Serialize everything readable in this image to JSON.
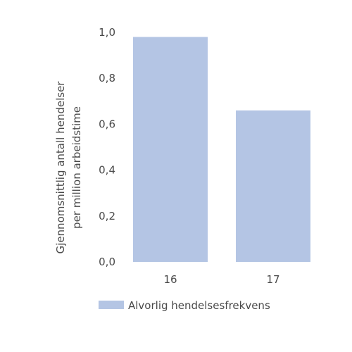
{
  "chart_data": {
    "type": "bar",
    "categories": [
      "16",
      "17"
    ],
    "series": [
      {
        "name": "Alvorlig hendelsesfrekvens",
        "values": [
          0.98,
          0.66
        ],
        "color": "#b4c5e4"
      }
    ],
    "yticks": [
      "0,0",
      "0,2",
      "0,4",
      "0,6",
      "0,8",
      "1,0"
    ],
    "ylim": [
      0,
      1.0
    ],
    "ylabel_lines": [
      "Gjennomsnittlig antall hendelser",
      "per million arbeidstime"
    ],
    "xlabel": "",
    "title": "",
    "grid": false,
    "legend_position": "bottom-left"
  }
}
